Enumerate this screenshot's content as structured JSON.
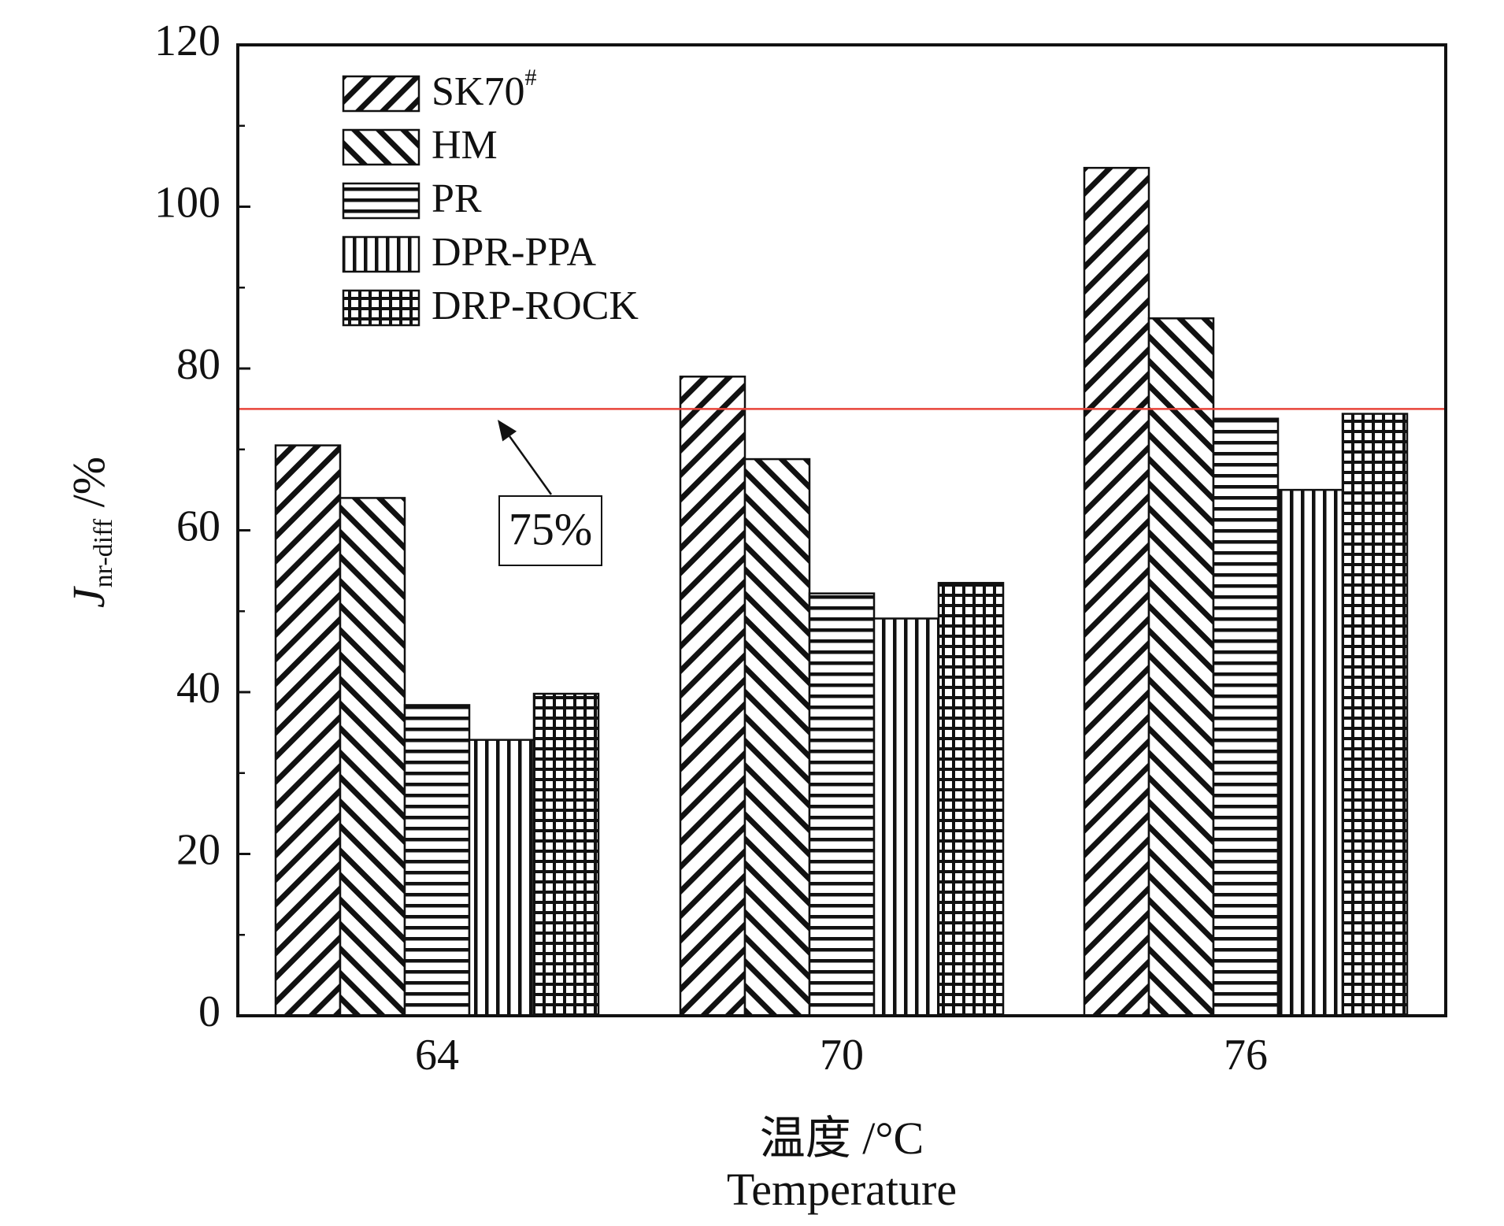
{
  "chart_data": {
    "type": "bar",
    "categories": [
      "64",
      "70",
      "76"
    ],
    "series": [
      {
        "name": "SK70",
        "name_sup": "#",
        "pattern": "hatch-fwd",
        "values": [
          70.5,
          79.0,
          104.8
        ]
      },
      {
        "name": "HM",
        "name_sup": "",
        "pattern": "hatch-back",
        "values": [
          64.0,
          68.8,
          86.2
        ]
      },
      {
        "name": "PR",
        "name_sup": "",
        "pattern": "hlines",
        "values": [
          38.4,
          52.2,
          73.8
        ]
      },
      {
        "name": "DPR-PPA",
        "name_sup": "",
        "pattern": "vlines",
        "values": [
          34.1,
          49.1,
          65.0
        ]
      },
      {
        "name": "DRP-ROCK",
        "name_sup": "",
        "pattern": "grid",
        "values": [
          39.8,
          53.5,
          74.4
        ]
      }
    ],
    "ylim": [
      0,
      120
    ],
    "yticks": [
      "0",
      "20",
      "40",
      "60",
      "80",
      "100",
      "120"
    ],
    "ylabel_main": "J",
    "ylabel_sub": "nr-diff",
    "ylabel_unit": " /%",
    "xlabel_line1": "温度 /°C",
    "xlabel_line2": "Temperature",
    "reference_line": {
      "value": 75,
      "color": "#e8443a",
      "label": "75%"
    },
    "legend_position": "top-left",
    "grid": false
  }
}
